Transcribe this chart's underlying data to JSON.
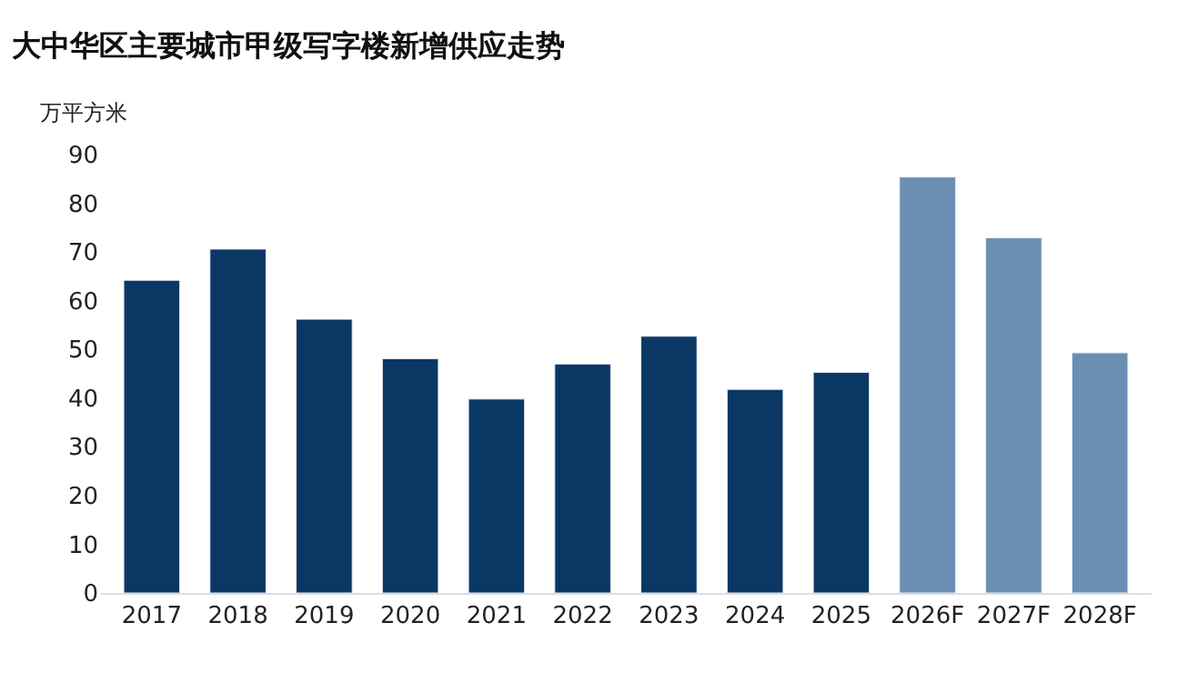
{
  "chart_data": {
    "type": "bar",
    "title": "大中华区主要城市甲级写字楼新增供应走势",
    "ylabel": "万平方米",
    "categories": [
      "2017",
      "2018",
      "2019",
      "2020",
      "2021",
      "2022",
      "2023",
      "2024",
      "2025",
      "2026F",
      "2027F",
      "2028F"
    ],
    "series": [
      {
        "color": "#0b3764",
        "values": [
          64.2,
          70.6,
          56.2,
          48.1,
          39.8,
          47.0,
          52.7,
          41.8,
          45.3,
          null,
          null,
          null
        ]
      },
      {
        "color": "#6b8fb3",
        "values": [
          null,
          null,
          null,
          null,
          null,
          null,
          null,
          null,
          null,
          85.4,
          72.9,
          49.3
        ]
      }
    ],
    "ylim": [
      0,
      90
    ],
    "yticks": [
      0,
      10,
      20,
      30,
      40,
      50,
      60,
      70,
      80,
      90
    ],
    "legend": false
  }
}
